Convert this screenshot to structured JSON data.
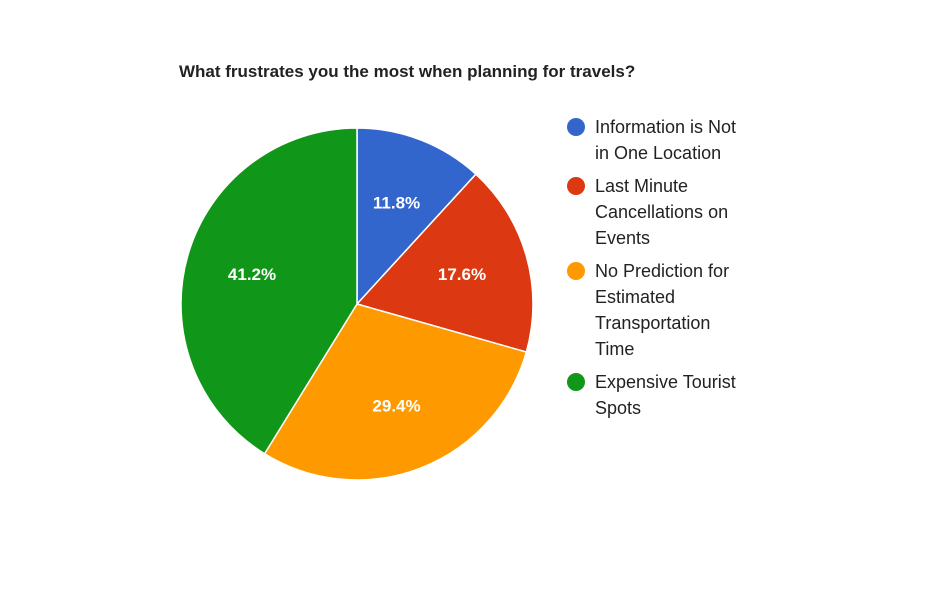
{
  "chart_data": {
    "type": "pie",
    "title": "What frustrates you the most when planning for travels?",
    "slices": [
      {
        "label": "Information is Not in One Location",
        "value": 11.8,
        "display": "11.8%",
        "color": "#3366cc"
      },
      {
        "label": "Last Minute Cancellations on Events",
        "value": 17.6,
        "display": "17.6%",
        "color": "#dc3912"
      },
      {
        "label": "No Prediction for Estimated Transportation Time",
        "value": 29.4,
        "display": "29.4%",
        "color": "#ff9900"
      },
      {
        "label": "Expensive Tourist Spots",
        "value": 41.2,
        "display": "41.2%",
        "color": "#109618"
      }
    ],
    "legend": {
      "position": "right",
      "items": [
        {
          "lines": [
            "Information is Not",
            "in One Location"
          ]
        },
        {
          "lines": [
            "Last Minute",
            "Cancellations on",
            "Events"
          ]
        },
        {
          "lines": [
            "No Prediction for",
            "Estimated",
            "Transportation",
            "Time"
          ]
        },
        {
          "lines": [
            "Expensive Tourist",
            "Spots"
          ]
        }
      ]
    }
  }
}
